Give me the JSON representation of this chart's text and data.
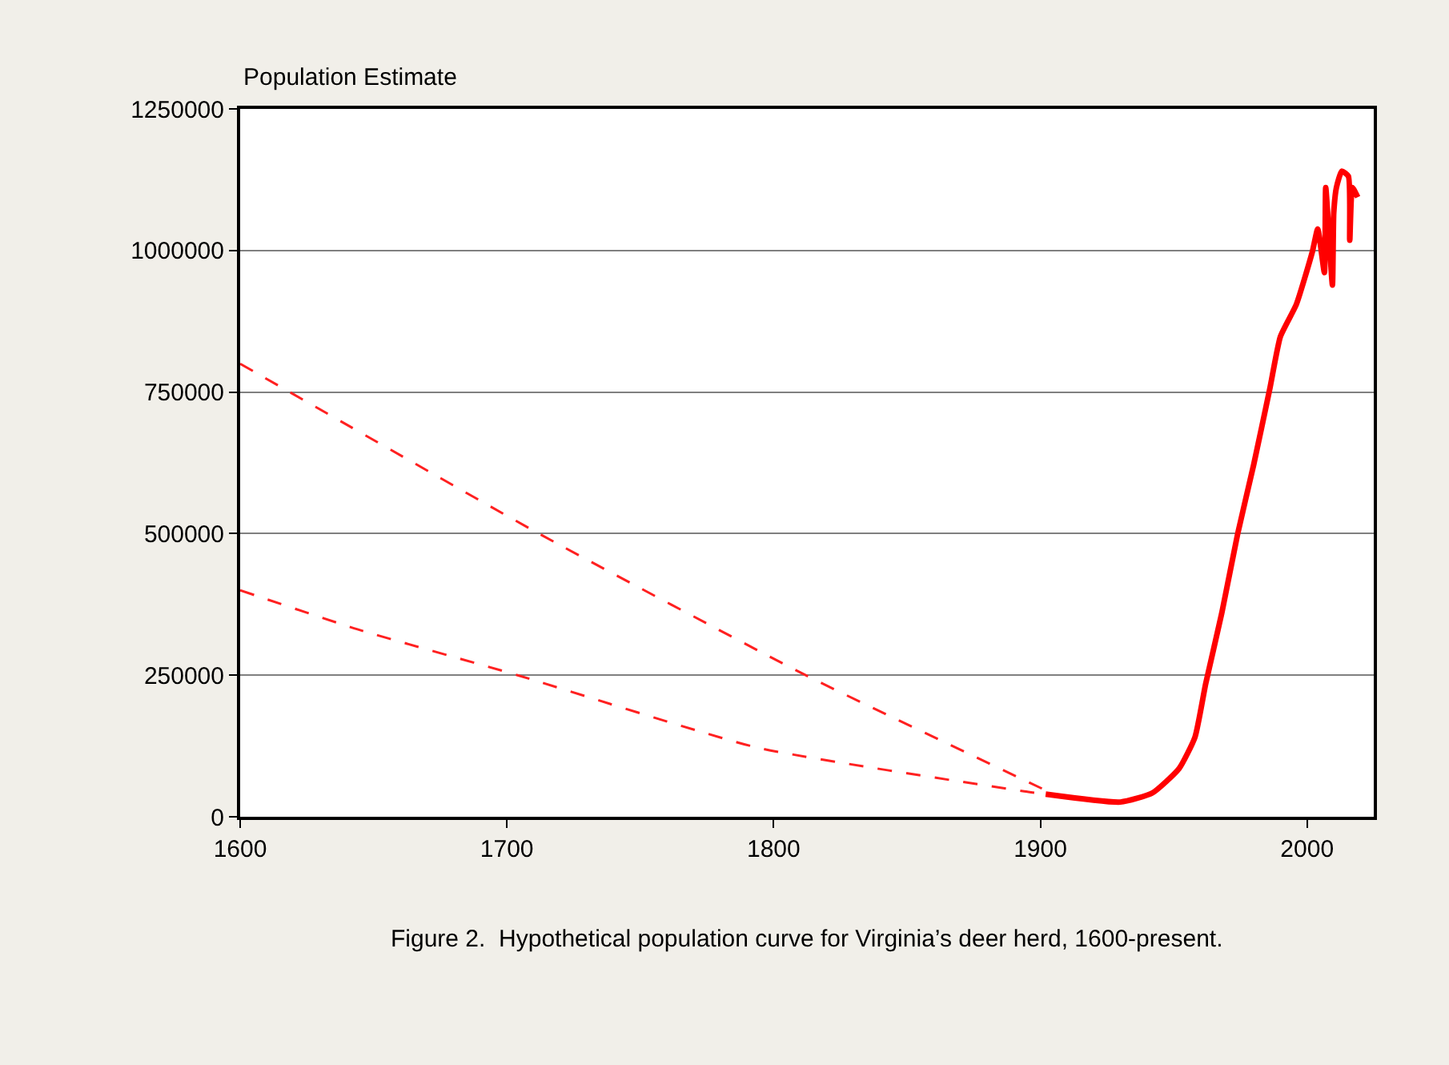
{
  "chart_data": {
    "type": "line",
    "ylabel": "Population Estimate",
    "annotations": [
      "Figure 2.  Hypothetical population curve for Virginia’s deer herd, 1600-present."
    ],
    "xlim": [
      1600,
      2025
    ],
    "xticks": [
      1600,
      1700,
      1800,
      1900,
      2000
    ],
    "ylim": [
      0,
      1250000
    ],
    "yticks": [
      0,
      250000,
      500000,
      750000,
      1000000,
      1250000
    ],
    "grid": "y",
    "marker": "none",
    "series": [
      {
        "color": "#ff2020",
        "line_style": "dashed",
        "x": [
          1600,
          1712,
          1812,
          1905
        ],
        "values": [
          800000,
          500000,
          250000,
          40000
        ]
      },
      {
        "color": "#ff2020",
        "line_style": "dashed",
        "x": [
          1600,
          1644,
          1704,
          1794,
          1894,
          1905
        ],
        "values": [
          400000,
          331000,
          250000,
          122000,
          45000,
          38000
        ]
      },
      {
        "color": "#ff0000",
        "line_style": "solid",
        "x": [
          1902,
          1930,
          1942,
          1952,
          1958,
          1962,
          1968,
          1974,
          1980,
          1986,
          1990,
          1996,
          2002,
          2004,
          2006.5,
          2007,
          2009.5,
          2010,
          2011,
          2013,
          2015.5,
          2016,
          2017,
          2019
        ],
        "values": [
          40000,
          26000,
          42000,
          85000,
          141000,
          235000,
          359000,
          500000,
          622000,
          755000,
          848000,
          905000,
          998000,
          1038000,
          961000,
          1111000,
          939000,
          1066000,
          1111000,
          1140000,
          1131000,
          1018000,
          1111000,
          1094000
        ]
      }
    ]
  }
}
